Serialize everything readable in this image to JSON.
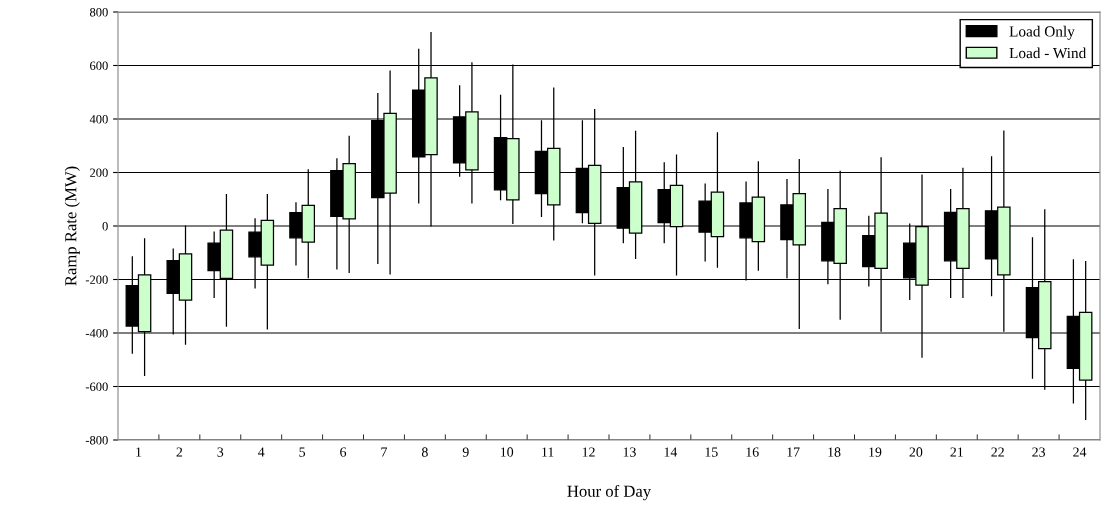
{
  "chart_data": {
    "type": "candlestick",
    "xlabel": "Hour of Day",
    "ylabel": "Ramp Rate (MW)",
    "categories": [
      "1",
      "2",
      "3",
      "4",
      "5",
      "6",
      "7",
      "8",
      "9",
      "10",
      "11",
      "12",
      "13",
      "14",
      "15",
      "16",
      "17",
      "18",
      "19",
      "20",
      "21",
      "22",
      "23",
      "24"
    ],
    "series": [
      {
        "name": "Load Only",
        "color": "#000000",
        "ohlc": [
          [
            -374,
            -115,
            -475,
            -223
          ],
          [
            -252,
            -86,
            -403,
            -129
          ],
          [
            -167,
            -23,
            -267,
            -64
          ],
          [
            -115,
            27,
            -231,
            -23
          ],
          [
            -44,
            86,
            -145,
            50
          ],
          [
            36,
            251,
            -160,
            207
          ],
          [
            106,
            495,
            -140,
            394
          ],
          [
            258,
            660,
            86,
            508
          ],
          [
            236,
            524,
            186,
            408
          ],
          [
            135,
            488,
            99,
            330
          ],
          [
            121,
            393,
            36,
            279
          ],
          [
            50,
            393,
            13,
            215
          ],
          [
            -8,
            293,
            -62,
            143
          ],
          [
            13,
            236,
            -62,
            136
          ],
          [
            -23,
            157,
            -130,
            93
          ],
          [
            -44,
            164,
            -201,
            86
          ],
          [
            -51,
            173,
            -193,
            79
          ],
          [
            -130,
            136,
            -215,
            14
          ],
          [
            -152,
            36,
            -224,
            -36
          ],
          [
            -194,
            7,
            -274,
            -64
          ],
          [
            -130,
            136,
            -267,
            51
          ],
          [
            -123,
            258,
            -260,
            57
          ],
          [
            -417,
            -44,
            -569,
            -230
          ],
          [
            -532,
            -127,
            -661,
            -338
          ]
        ]
      },
      {
        "name": "Load - Wind",
        "color": "#ccffcc",
        "ohlc": [
          [
            -395,
            -48,
            -558,
            -183
          ],
          [
            -277,
            0,
            -442,
            -104
          ],
          [
            -196,
            117,
            -374,
            -15
          ],
          [
            -146,
            117,
            -385,
            21
          ],
          [
            -60,
            210,
            -193,
            77
          ],
          [
            27,
            335,
            -173,
            233
          ],
          [
            123,
            579,
            -179,
            421
          ],
          [
            267,
            723,
            0,
            554
          ],
          [
            210,
            610,
            86,
            427
          ],
          [
            98,
            601,
            10,
            327
          ],
          [
            79,
            515,
            -52,
            290
          ],
          [
            10,
            435,
            -183,
            227
          ],
          [
            -27,
            354,
            -121,
            165
          ],
          [
            -2,
            265,
            -183,
            152
          ],
          [
            -40,
            348,
            -154,
            127
          ],
          [
            -58,
            240,
            -165,
            108
          ],
          [
            -71,
            248,
            -383,
            121
          ],
          [
            -140,
            204,
            -348,
            65
          ],
          [
            -158,
            255,
            -393,
            48
          ],
          [
            -221,
            190,
            -490,
            -2
          ],
          [
            -158,
            215,
            -267,
            65
          ],
          [
            -183,
            355,
            -393,
            71
          ],
          [
            -458,
            60,
            -610,
            -208
          ],
          [
            -576,
            -133,
            -723,
            -323
          ]
        ]
      }
    ],
    "ylim": [
      -800,
      800
    ],
    "yticks": [
      -800,
      -600,
      -400,
      -200,
      0,
      200,
      400,
      600,
      800
    ],
    "grid": "y",
    "legend": "top right"
  }
}
